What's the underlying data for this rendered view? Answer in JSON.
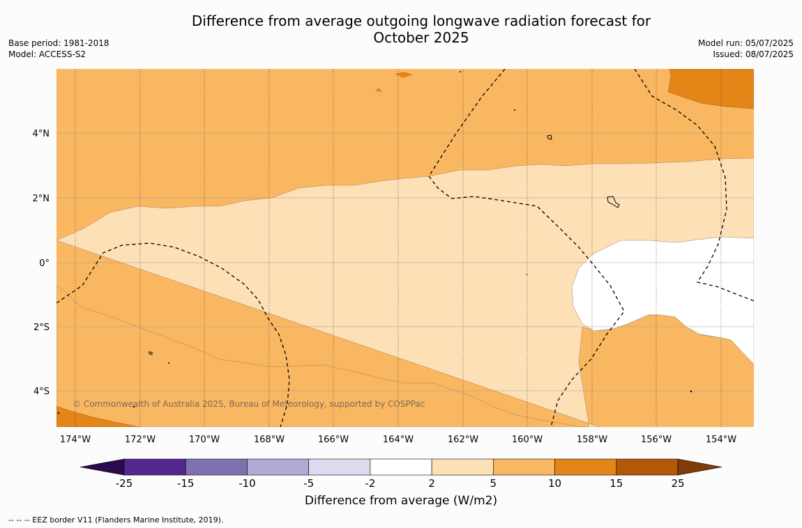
{
  "title_line1": "Difference from average outgoing longwave radiation forecast for",
  "title_line2": "October 2025",
  "meta_left": {
    "base_period": "Base period: 1981-2018",
    "model": "Model: ACCESS-S2"
  },
  "meta_right": {
    "model_run": "Model run: 05/07/2025",
    "issued": "Issued: 08/07/2025"
  },
  "copyright": "© Commonwealth of Australia 2025, Bureau of Meteorology, supported by COSPPac",
  "lat_labels": [
    "4°N",
    "2°N",
    "0°",
    "2°S",
    "4°S"
  ],
  "lon_labels": [
    "174°W",
    "172°W",
    "170°W",
    "168°W",
    "166°W",
    "164°W",
    "162°W",
    "160°W",
    "158°W",
    "156°W",
    "154°W"
  ],
  "colorbar": {
    "title": "Difference from average (W/m2)",
    "ticks": [
      "-25",
      "-15",
      "-10",
      "-5",
      "-2",
      "2",
      "5",
      "10",
      "15",
      "25"
    ],
    "colors": [
      "#2d0a4e",
      "#54278f",
      "#7f71b0",
      "#b3a9d5",
      "#dcdbee",
      "#ffffff",
      "#fde0b6",
      "#fab762",
      "#e38517",
      "#b35806",
      "#7f3b08"
    ]
  },
  "footer": "--  --  -- EEZ border V11 (Flanders Marine Institute, 2019)."
}
